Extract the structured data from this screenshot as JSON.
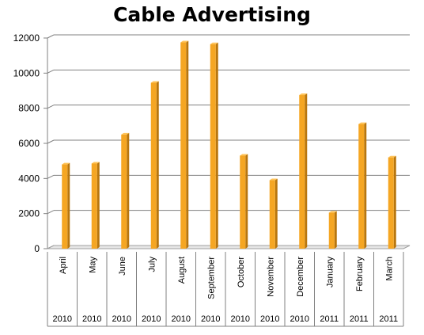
{
  "chart_data": {
    "type": "bar",
    "title": "Cable Advertising",
    "categories": [
      "April",
      "May",
      "June",
      "July",
      "August",
      "September",
      "October",
      "November",
      "December",
      "January",
      "February",
      "March"
    ],
    "years": [
      "2010",
      "2010",
      "2010",
      "2010",
      "2010",
      "2010",
      "2010",
      "2010",
      "2010",
      "2011",
      "2011",
      "2011"
    ],
    "values": [
      4800,
      4850,
      6500,
      9450,
      11750,
      11650,
      5300,
      3900,
      8750,
      2050,
      7100,
      5200
    ],
    "ylim": [
      0,
      12000
    ],
    "yticks": [
      0,
      2000,
      4000,
      6000,
      8000,
      10000,
      12000
    ],
    "grid": true,
    "legend": "none",
    "colors": {
      "bar": "#F5A623",
      "bar_side": "#B8760E",
      "bar_top": "#FFC45A",
      "grid": "#808080"
    }
  }
}
